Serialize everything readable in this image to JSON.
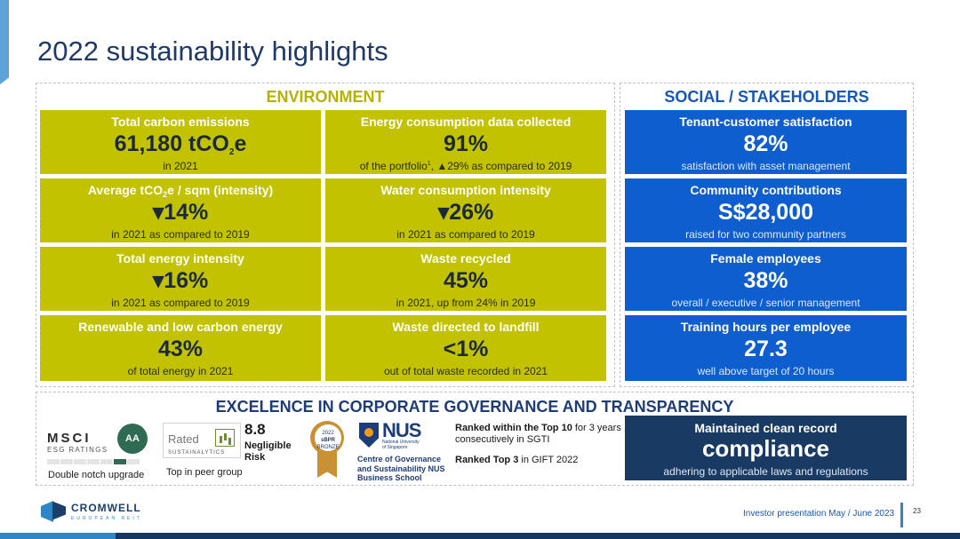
{
  "slide": {
    "title": "2022 sustainability highlights",
    "page_number": "23",
    "footer": "Investor presentation May / June 2023"
  },
  "brand": {
    "name": "CROMWELL",
    "tagline": "EUROPEAN REIT",
    "colors": {
      "lime": "#c3c200",
      "blue": "#0f5ecf",
      "navy": "#193a63"
    }
  },
  "environment": {
    "heading": "ENVIRONMENT",
    "tiles": [
      {
        "title": "Total carbon emissions",
        "value_main": "61,180 tCO",
        "value_sub": "2",
        "value_tail": "e",
        "subtitle": "in 2021"
      },
      {
        "title": "Energy consumption data collected",
        "value": "91%",
        "subtitle_a": "of the portfolio",
        "subtitle_sup": "1",
        "subtitle_b": ", ▲29% as compared to 2019"
      },
      {
        "title_a": "Average tCO",
        "title_sub": "2",
        "title_b": "e / sqm (intensity)",
        "value": "▾14%",
        "subtitle": "in 2021 as compared to 2019"
      },
      {
        "title": "Water consumption intensity",
        "value": "▾26%",
        "subtitle": "in 2021 as compared to 2019"
      },
      {
        "title": "Total energy intensity",
        "value": "▾16%",
        "subtitle": "in 2021 as compared to 2019"
      },
      {
        "title": "Waste recycled",
        "value": "45%",
        "subtitle": "in 2021, up from 24% in 2019"
      },
      {
        "title": "Renewable and low carbon energy",
        "value": "43%",
        "subtitle": "of total energy in 2021"
      },
      {
        "title": "Waste directed to landfill",
        "value": "<1%",
        "subtitle": "out of total waste recorded in 2021"
      }
    ]
  },
  "social": {
    "heading": "SOCIAL / STAKEHOLDERS",
    "tiles": [
      {
        "title": "Tenant-customer satisfaction",
        "value": "82%",
        "subtitle": "satisfaction with asset management"
      },
      {
        "title": "Community contributions",
        "value": "S$28,000",
        "subtitle": "raised for two community partners"
      },
      {
        "title": "Female employees",
        "value": "38%",
        "subtitle": "overall / executive / senior management"
      },
      {
        "title": "Training hours per employee",
        "value": "27.3",
        "subtitle": "well above target of 20 hours"
      }
    ]
  },
  "governance": {
    "heading": "EXCELENCE IN CORPORATE GOVERNANCE AND TRANSPARENCY",
    "msci": {
      "word": "MSCI",
      "sub": "ESG RATINGS",
      "rating": "AA",
      "caption": "Double notch upgrade"
    },
    "sustainalytics": {
      "rated": "Rated",
      "name": "SUSTAINALYTICS",
      "score": "8.8",
      "risk_line1": "Negligible",
      "risk_line2": "Risk",
      "caption": "Top in peer group"
    },
    "sbpr": {
      "line1": "2022",
      "line2": "sBPR",
      "line3": "BRONZE"
    },
    "nus": {
      "word": "NUS",
      "sub1": "National University",
      "sub2": "of Singapore",
      "school1": "Centre of Governance",
      "school2": "and Sustainability NUS",
      "school3": "Business School"
    },
    "rank1": {
      "bold": "Ranked within the Top 10",
      "rest": " for 3 years consecutively in SGTI"
    },
    "rank2": {
      "bold": "Ranked Top 3",
      "rest": " in GIFT 2022"
    },
    "tile": {
      "title": "Maintained clean record",
      "value": "compliance",
      "subtitle": "adhering to applicable laws and regulations"
    }
  }
}
